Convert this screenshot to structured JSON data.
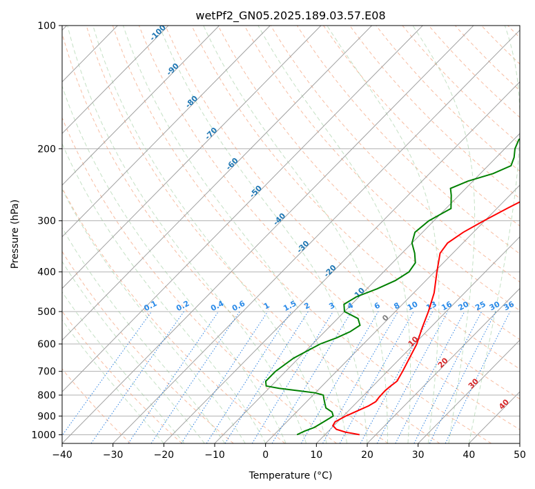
{
  "chart_data": {
    "type": "line",
    "title": "wetPf2_GN05.2025.189.03.57.E08",
    "xlabel": "Temperature (°C)",
    "ylabel": "Pressure (hPa)",
    "xlim": [
      -40,
      50
    ],
    "ylim": [
      1050,
      100
    ],
    "y_scale": "log",
    "grid": true,
    "x_ticks": [
      -40,
      -30,
      -20,
      -10,
      0,
      10,
      20,
      30,
      40,
      50
    ],
    "y_ticks": [
      100,
      200,
      300,
      400,
      500,
      600,
      700,
      800,
      900,
      1000
    ],
    "series": [
      {
        "color": "#ff0000",
        "points": [
          [
            1000,
            16.8
          ],
          [
            985,
            13.5
          ],
          [
            970,
            11.2
          ],
          [
            950,
            9.8
          ],
          [
            930,
            9.5
          ],
          [
            900,
            10.5
          ],
          [
            870,
            12.0
          ],
          [
            850,
            13.0
          ],
          [
            830,
            13.6
          ],
          [
            810,
            13.4
          ],
          [
            780,
            13.3
          ],
          [
            760,
            13.5
          ],
          [
            740,
            13.8
          ],
          [
            700,
            13.0
          ],
          [
            650,
            11.8
          ],
          [
            600,
            10.5
          ],
          [
            550,
            8.5
          ],
          [
            500,
            6.5
          ],
          [
            450,
            4.0
          ],
          [
            400,
            0.5
          ],
          [
            360,
            -2.5
          ],
          [
            340,
            -3.0
          ],
          [
            320,
            -2.0
          ],
          [
            300,
            -0.2
          ],
          [
            280,
            2.0
          ],
          [
            260,
            4.5
          ],
          [
            240,
            6.5
          ],
          [
            220,
            8.0
          ],
          [
            200,
            9.0
          ],
          [
            180,
            10.0
          ],
          [
            160,
            10.7
          ],
          [
            140,
            11.0
          ],
          [
            120,
            11.5
          ],
          [
            100,
            11.5
          ]
        ]
      },
      {
        "color": "#008000",
        "points": [
          [
            1000,
            4.5
          ],
          [
            980,
            5.3
          ],
          [
            960,
            6.5
          ],
          [
            940,
            7.0
          ],
          [
            920,
            7.5
          ],
          [
            900,
            8.0
          ],
          [
            880,
            7.0
          ],
          [
            860,
            5.0
          ],
          [
            840,
            4.0
          ],
          [
            820,
            3.0
          ],
          [
            800,
            2.0
          ],
          [
            790,
            0.0
          ],
          [
            780,
            -4.0
          ],
          [
            770,
            -8.0
          ],
          [
            760,
            -11.0
          ],
          [
            740,
            -12.0
          ],
          [
            700,
            -12.0
          ],
          [
            650,
            -11.0
          ],
          [
            600,
            -8.5
          ],
          [
            580,
            -6.5
          ],
          [
            560,
            -5.0
          ],
          [
            540,
            -4.3
          ],
          [
            520,
            -6.0
          ],
          [
            500,
            -10.0
          ],
          [
            480,
            -11.5
          ],
          [
            460,
            -10.5
          ],
          [
            440,
            -8.0
          ],
          [
            420,
            -6.0
          ],
          [
            400,
            -5.0
          ],
          [
            380,
            -5.5
          ],
          [
            360,
            -7.5
          ],
          [
            340,
            -10.0
          ],
          [
            320,
            -11.5
          ],
          [
            300,
            -11.0
          ],
          [
            280,
            -9.0
          ],
          [
            260,
            -11.5
          ],
          [
            250,
            -13.0
          ],
          [
            240,
            -11.0
          ],
          [
            230,
            -7.5
          ],
          [
            220,
            -5.5
          ],
          [
            210,
            -6.5
          ],
          [
            200,
            -8.0
          ],
          [
            190,
            -9.0
          ],
          [
            180,
            -8.5
          ],
          [
            170,
            -7.5
          ],
          [
            160,
            -5.0
          ],
          [
            140,
            1.0
          ],
          [
            120,
            6.0
          ],
          [
            100,
            10.0
          ]
        ]
      }
    ],
    "isotherm_labels": [
      "-100",
      "-90",
      "-80",
      "-70",
      "-60",
      "-50",
      "-40",
      "-30",
      "-20",
      "-10",
      "0",
      "10",
      "20",
      "30",
      "40"
    ],
    "mixing_ratio_labels": [
      "0.1",
      "0.2",
      "0.4",
      "0.6",
      "1",
      "1.5",
      "2",
      "3",
      "4",
      "6",
      "8",
      "10",
      "13",
      "16",
      "20",
      "25",
      "30",
      "36"
    ]
  }
}
